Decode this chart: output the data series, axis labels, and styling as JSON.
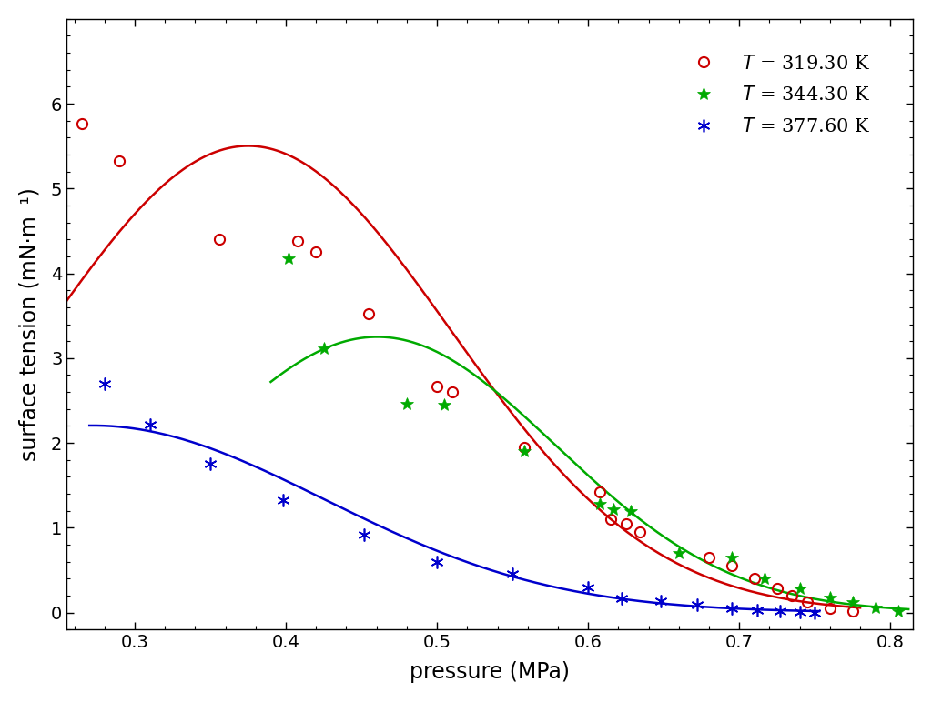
{
  "xlabel": "pressure (MPa)",
  "ylabel": "surface tension (mN·m⁻¹)",
  "xlim": [
    0.255,
    0.815
  ],
  "ylim": [
    -0.2,
    7.0
  ],
  "xticks": [
    0.3,
    0.4,
    0.5,
    0.6,
    0.7,
    0.8
  ],
  "yticks": [
    0,
    1,
    2,
    3,
    4,
    5,
    6
  ],
  "background_color": "#ffffff",
  "exp_red_x": [
    0.265,
    0.29,
    0.356,
    0.408,
    0.42,
    0.455,
    0.5,
    0.51,
    0.558,
    0.608,
    0.615,
    0.625,
    0.634,
    0.68,
    0.695,
    0.71,
    0.725,
    0.735,
    0.745,
    0.76,
    0.775
  ],
  "exp_red_y": [
    5.77,
    5.32,
    4.4,
    4.38,
    4.25,
    3.52,
    2.67,
    2.6,
    1.95,
    1.42,
    1.1,
    1.05,
    0.95,
    0.65,
    0.55,
    0.4,
    0.28,
    0.2,
    0.12,
    0.05,
    0.02
  ],
  "exp_green_x": [
    0.402,
    0.425,
    0.48,
    0.505,
    0.558,
    0.608,
    0.617,
    0.628,
    0.66,
    0.695,
    0.717,
    0.74,
    0.76,
    0.775,
    0.79,
    0.805
  ],
  "exp_green_y": [
    4.18,
    3.12,
    2.46,
    2.45,
    1.9,
    1.28,
    1.22,
    1.2,
    0.7,
    0.65,
    0.4,
    0.28,
    0.18,
    0.12,
    0.06,
    0.02
  ],
  "exp_blue_x": [
    0.28,
    0.31,
    0.35,
    0.398,
    0.452,
    0.5,
    0.55,
    0.6,
    0.622,
    0.648,
    0.672,
    0.695,
    0.712,
    0.727,
    0.74,
    0.75
  ],
  "exp_blue_y": [
    2.7,
    2.22,
    1.75,
    1.32,
    0.92,
    0.6,
    0.46,
    0.3,
    0.17,
    0.13,
    0.09,
    0.05,
    0.03,
    0.02,
    0.01,
    0.0
  ],
  "red_color": "#cc0000",
  "green_color": "#00aa00",
  "blue_color": "#0000cc",
  "fontsize_axis_label": 17,
  "fontsize_tick": 14,
  "fontsize_legend": 15
}
